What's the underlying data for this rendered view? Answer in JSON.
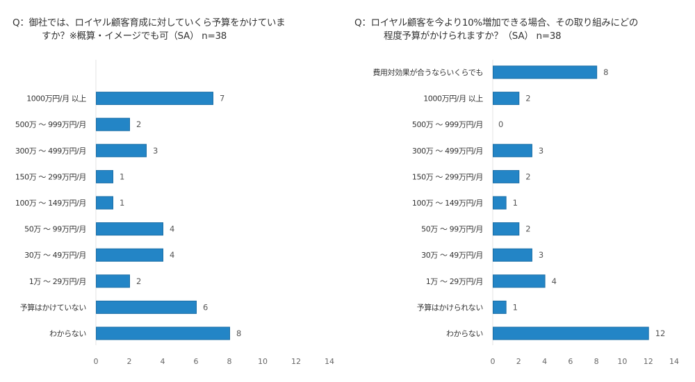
{
  "chart_data": [
    {
      "type": "bar",
      "orientation": "horizontal",
      "title_line1": "Q：御社では、ロイヤル顧客育成に対していくら予算をかけていま",
      "title_line2": "すか？※概算・イメージでも可（SA） n=38",
      "categories": [
        "1000万円/月 以上",
        "500万 ～ 999万円/月",
        "300万 ～ 499万円/月",
        "150万 ～ 299万円/月",
        "100万 ～ 149万円/月",
        "50万 ～ 99万円/月",
        "30万 ～ 49万円/月",
        "1万 ～ 29万円/月",
        "予算はかけていない",
        "わからない"
      ],
      "values": [
        7,
        2,
        3,
        1,
        1,
        4,
        4,
        2,
        6,
        8
      ],
      "xlim": [
        0,
        14
      ],
      "xticks": [
        0,
        2,
        4,
        6,
        8,
        10,
        12,
        14
      ],
      "grid": false,
      "bar_color": "#2385c6"
    },
    {
      "type": "bar",
      "orientation": "horizontal",
      "title_line1": "Q：ロイヤル顧客を今より10%増加できる場合、その取り組みにどの",
      "title_line2": "程度予算がかけられますか？（SA） n=38",
      "categories": [
        "費用対効果が合うならいくらでも",
        "1000万円/月 以上",
        "500万 ～ 999万円/月",
        "300万 ～ 499万円/月",
        "150万 ～ 299万円/月",
        "100万 ～ 149万円/月",
        "50万 ～ 99万円/月",
        "30万 ～ 49万円/月",
        "1万 ～ 29万円/月",
        "予算はかけられない",
        "わからない"
      ],
      "values": [
        8,
        2,
        0,
        3,
        2,
        1,
        2,
        3,
        4,
        1,
        12
      ],
      "xlim": [
        0,
        14
      ],
      "xticks": [
        0,
        2,
        4,
        6,
        8,
        10,
        12,
        14
      ],
      "grid": false,
      "bar_color": "#2385c6"
    }
  ]
}
